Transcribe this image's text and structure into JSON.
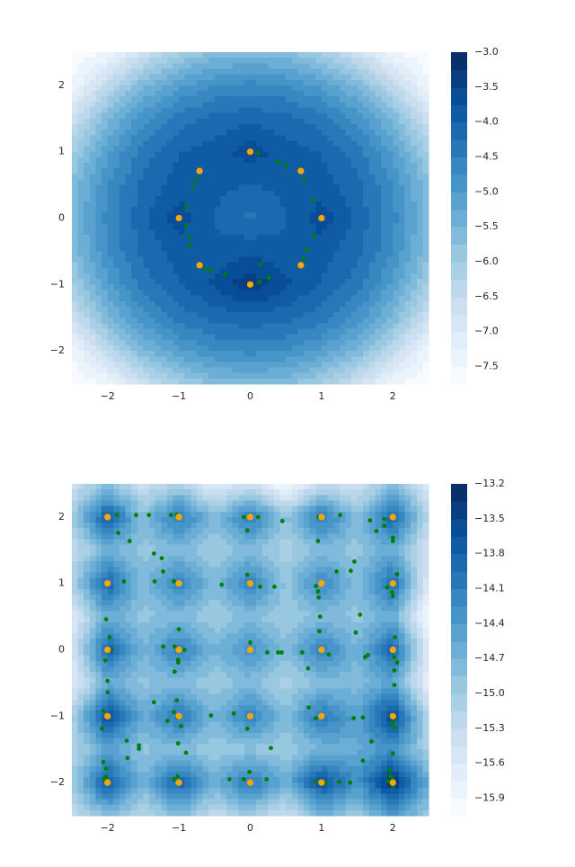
{
  "chart_data": [
    {
      "type": "contour",
      "x": [
        -2.5,
        -2,
        -1.5,
        -1,
        -0.5,
        0,
        0.5,
        1,
        1.5,
        2,
        2.5
      ],
      "y": [
        2.5,
        2,
        1.5,
        1,
        0.5,
        0,
        -0.5,
        -1,
        -1.5,
        -2,
        -2.5
      ],
      "z": [
        [
          -7.7,
          -7.53,
          -6.66,
          -6.04,
          -5.7,
          -5.6,
          -5.7,
          -6.04,
          -6.66,
          -7.53,
          -7.7
        ],
        [
          -7.53,
          -6.4,
          -5.59,
          -5.05,
          -4.74,
          -4.65,
          -4.74,
          -5.05,
          -5.59,
          -6.4,
          -7.53
        ],
        [
          -6.66,
          -5.59,
          -4.84,
          -4.38,
          -4.15,
          -4.09,
          -4.15,
          -4.38,
          -4.84,
          -5.59,
          -6.66
        ],
        [
          -6.04,
          -5.05,
          -4.38,
          -4.0,
          -3.9,
          -3.6,
          -3.9,
          -4.0,
          -4.38,
          -5.05,
          -6.04
        ],
        [
          -5.7,
          -4.74,
          -4.15,
          -3.9,
          -3.95,
          -4.0,
          -3.95,
          -3.9,
          -4.15,
          -4.74,
          -5.7
        ],
        [
          -5.6,
          -4.65,
          -4.09,
          -3.6,
          -4.0,
          -4.3,
          -4.0,
          -3.6,
          -4.09,
          -4.65,
          -5.6
        ],
        [
          -5.7,
          -4.74,
          -4.15,
          -3.9,
          -3.95,
          -3.8,
          -3.95,
          -3.9,
          -4.15,
          -4.74,
          -5.7
        ],
        [
          -6.04,
          -5.05,
          -4.38,
          -4.0,
          -3.7,
          -3.3,
          -3.7,
          -4.0,
          -4.38,
          -5.05,
          -6.04
        ],
        [
          -6.66,
          -5.59,
          -4.84,
          -4.38,
          -4.15,
          -4.09,
          -4.15,
          -4.38,
          -4.84,
          -5.59,
          -6.66
        ],
        [
          -7.53,
          -6.4,
          -5.59,
          -5.05,
          -4.74,
          -4.65,
          -4.74,
          -5.05,
          -5.59,
          -6.4,
          -7.53
        ],
        [
          -7.7,
          -7.53,
          -6.66,
          -6.04,
          -5.7,
          -5.6,
          -5.7,
          -6.04,
          -6.66,
          -7.53,
          -7.7
        ]
      ],
      "levels": [
        -7.75,
        -7.5,
        -7.25,
        -7.0,
        -6.75,
        -6.5,
        -6.25,
        -6.0,
        -5.75,
        -5.5,
        -5.25,
        -5.0,
        -4.75,
        -4.5,
        -4.25,
        -4.0,
        -3.75,
        -3.5,
        -3.25,
        -3.0
      ],
      "colormap": [
        "#f7fbff",
        "#deebf7",
        "#c6dbef",
        "#9ecae1",
        "#6baed6",
        "#4292c6",
        "#2171b5",
        "#08519c",
        "#08306b"
      ],
      "cticks": [
        {
          "value": -3.0,
          "label": "−3.0"
        },
        {
          "value": -3.5,
          "label": "−3.5"
        },
        {
          "value": -4.0,
          "label": "−4.0"
        },
        {
          "value": -4.5,
          "label": "−4.5"
        },
        {
          "value": -5.0,
          "label": "−5.0"
        },
        {
          "value": -5.5,
          "label": "−5.5"
        },
        {
          "value": -6.0,
          "label": "−6.0"
        },
        {
          "value": -6.5,
          "label": "−6.5"
        },
        {
          "value": -7.0,
          "label": "−7.0"
        },
        {
          "value": -7.5,
          "label": "−7.5"
        }
      ],
      "xlim": [
        -2.5,
        2.5
      ],
      "ylim": [
        -2.5,
        2.5
      ],
      "xticks": [
        {
          "value": -2,
          "label": "−2"
        },
        {
          "value": -1,
          "label": "−1"
        },
        0,
        1,
        2
      ],
      "yticks": [
        {
          "value": -2,
          "label": "−2"
        },
        {
          "value": -1,
          "label": "−1"
        },
        0,
        1,
        2
      ],
      "series": [
        {
          "color": "green",
          "x": [
            0.11,
            0.39,
            0.49,
            0.76,
            0.88,
            0.89,
            0.79,
            0.75,
            0.15,
            0.26,
            0.13,
            -0.35,
            -0.55,
            -0.64,
            -0.84,
            -0.86,
            -0.9,
            -0.9,
            -0.8,
            -0.75
          ],
          "y": [
            0.98,
            0.85,
            0.8,
            0.57,
            0.27,
            -0.27,
            -0.47,
            -0.61,
            -0.7,
            -0.9,
            -0.96,
            -0.85,
            -0.79,
            -0.76,
            -0.41,
            -0.28,
            -0.11,
            0.16,
            0.47,
            0.58
          ]
        },
        {
          "color": "orange",
          "x": [
            0,
            0.71,
            1,
            0.71,
            0,
            -1,
            -0.71,
            -0.71
          ],
          "y": [
            1,
            0.71,
            0,
            -0.71,
            -1,
            0,
            0.71,
            -0.71
          ]
        }
      ]
    },
    {
      "type": "contour",
      "x": [
        -2.5,
        -2,
        -1.5,
        -1,
        -0.5,
        0,
        0.5,
        1,
        1.5,
        2,
        2.5
      ],
      "y": [
        2.5,
        2,
        1.5,
        1,
        0.5,
        0,
        -0.5,
        -1,
        -1.5,
        -2,
        -2.5
      ],
      "z": [
        [
          -15.4,
          -14.9,
          -15.4,
          -15.1,
          -15.7,
          -15.4,
          -16.0,
          -15.3,
          -15.5,
          -14.8,
          -15.6
        ],
        [
          -15.0,
          -13.7,
          -14.8,
          -14.0,
          -14.8,
          -14.0,
          -14.9,
          -14.0,
          -14.8,
          -13.8,
          -15.2
        ],
        [
          -15.3,
          -14.7,
          -14.9,
          -14.8,
          -15.0,
          -14.8,
          -15.1,
          -14.8,
          -14.9,
          -14.6,
          -15.5
        ],
        [
          -15.1,
          -13.8,
          -14.8,
          -14.1,
          -14.8,
          -14.1,
          -14.9,
          -14.2,
          -14.8,
          -13.9,
          -15.6
        ],
        [
          -15.6,
          -14.6,
          -14.9,
          -14.8,
          -15.0,
          -14.8,
          -15.0,
          -14.8,
          -14.9,
          -14.6,
          -16.0
        ],
        [
          -15.5,
          -13.8,
          -14.7,
          -14.1,
          -14.7,
          -14.3,
          -14.8,
          -14.1,
          -14.7,
          -13.8,
          -15.6
        ],
        [
          -15.7,
          -14.6,
          -14.9,
          -14.8,
          -15.0,
          -14.8,
          -15.1,
          -14.8,
          -14.8,
          -14.5,
          -15.8
        ],
        [
          -15.1,
          -13.6,
          -14.6,
          -14.0,
          -14.7,
          -14.1,
          -14.8,
          -14.0,
          -14.5,
          -13.5,
          -15.2
        ],
        [
          -15.2,
          -14.5,
          -14.9,
          -14.8,
          -15.0,
          -14.9,
          -15.0,
          -14.7,
          -14.6,
          -14.3,
          -15.1
        ],
        [
          -15.0,
          -13.7,
          -14.7,
          -13.8,
          -14.6,
          -14.0,
          -14.6,
          -13.6,
          -14.3,
          -13.3,
          -14.6
        ],
        [
          -15.3,
          -14.8,
          -15.2,
          -14.8,
          -15.3,
          -15.0,
          -15.4,
          -14.7,
          -15.0,
          -14.4,
          -15.0
        ]
      ],
      "levels": [
        -16.05,
        -15.9,
        -15.75,
        -15.6,
        -15.45,
        -15.3,
        -15.15,
        -15.0,
        -14.85,
        -14.7,
        -14.55,
        -14.4,
        -14.25,
        -14.1,
        -13.95,
        -13.8,
        -13.65,
        -13.5,
        -13.35,
        -13.2
      ],
      "colormap": [
        "#f7fbff",
        "#deebf7",
        "#c6dbef",
        "#9ecae1",
        "#6baed6",
        "#4292c6",
        "#2171b5",
        "#08519c",
        "#08306b"
      ],
      "cticks": [
        {
          "value": -13.2,
          "label": "−13.2"
        },
        {
          "value": -13.5,
          "label": "−13.5"
        },
        {
          "value": -13.8,
          "label": "−13.8"
        },
        {
          "value": -14.1,
          "label": "−14.1"
        },
        {
          "value": -14.4,
          "label": "−14.4"
        },
        {
          "value": -14.7,
          "label": "−14.7"
        },
        {
          "value": -15.0,
          "label": "−15.0"
        },
        {
          "value": -15.3,
          "label": "−15.3"
        },
        {
          "value": -15.6,
          "label": "−15.6"
        },
        {
          "value": -15.9,
          "label": "−15.9"
        }
      ],
      "xlim": [
        -2.5,
        2.5
      ],
      "ylim": [
        -2.5,
        2.5
      ],
      "xticks": [
        {
          "value": -2,
          "label": "−2"
        },
        {
          "value": -1,
          "label": "−1"
        },
        0,
        1,
        2
      ],
      "yticks": [
        {
          "value": -2,
          "label": "−2"
        },
        {
          "value": -1,
          "label": "−1"
        },
        0,
        1,
        2
      ],
      "series": [
        {
          "color": "green",
          "x": [
            -1.87,
            -1.6,
            -1.42,
            -1.11,
            -1.03,
            -0.09,
            -0.04,
            0.11,
            0.45,
            0.96,
            1.26,
            1.68,
            1.88,
            1.88,
            2.0,
            2.0,
            1.77,
            -1.85,
            -1.69,
            0.95,
            -1.35,
            -1.24,
            -1.22,
            -1.34,
            -1.77,
            -1.07,
            -0.4,
            -0.04,
            0.14,
            0.34,
            1.21,
            1.41,
            1.46,
            0.92,
            0.95,
            0.96,
            1.92,
            1.99,
            2.06,
            2.0,
            0.98,
            1.54,
            -2.02,
            -1.0,
            -1.22,
            -1.06,
            -0.92,
            -1.01,
            -1.01,
            -1.06,
            0.0,
            0.24,
            0.39,
            0.44,
            0.73,
            0.97,
            1.1,
            0.81,
            1.48,
            1.61,
            1.65,
            2.03,
            2.02,
            2.06,
            2.02,
            2.02,
            -1.94,
            -2.03,
            -1.97,
            -2.0,
            -2.0,
            -1.35,
            -1.03,
            -0.55,
            -0.23,
            -1.07,
            -1.02,
            -0.97,
            -1.16,
            -2.08,
            -2.06,
            -0.04,
            0.82,
            0.92,
            1.58,
            1.45,
            2.02,
            2.02,
            1.99,
            -1.73,
            -1.56,
            -1.56,
            -1.01,
            -0.9,
            0.29,
            1.7,
            2.0,
            1.58,
            -1.72,
            -2.06,
            -2.02,
            -2.02,
            -2.04,
            -1.07,
            -1.02,
            -0.01,
            -0.29,
            -0.09,
            0.23,
            0.91,
            1.06,
            1.25,
            1.4,
            1.95,
            1.97,
            2.0,
            1.93,
            2.0
          ],
          "y": [
            2.03,
            2.03,
            2.03,
            2.03,
            2.03,
            2.0,
            1.8,
            2.0,
            1.94,
            2.0,
            2.03,
            1.95,
            1.97,
            1.87,
            1.69,
            1.64,
            1.79,
            1.76,
            1.64,
            1.64,
            1.45,
            1.38,
            1.18,
            1.03,
            1.03,
            1.03,
            0.98,
            1.13,
            0.95,
            0.95,
            1.18,
            1.19,
            1.33,
            0.96,
            0.88,
            0.79,
            0.94,
            0.87,
            1.14,
            0.81,
            0.5,
            0.53,
            0.46,
            0.31,
            0.05,
            0.05,
            0.0,
            -0.15,
            -0.19,
            -0.33,
            0.11,
            -0.04,
            -0.04,
            -0.04,
            -0.04,
            0.28,
            -0.07,
            -0.28,
            0.26,
            -0.11,
            -0.08,
            0.19,
            -0.11,
            -0.19,
            -0.31,
            -0.53,
            0.0,
            -0.16,
            0.19,
            -0.47,
            -0.64,
            -0.79,
            -0.76,
            -0.99,
            -0.96,
            -0.94,
            -1.02,
            -1.15,
            -1.07,
            -1.19,
            -0.92,
            -1.19,
            -0.87,
            -1.03,
            -1.02,
            -1.03,
            -1.04,
            -1.17,
            -1.1,
            -1.37,
            -1.44,
            -1.49,
            -1.41,
            -1.55,
            -1.48,
            -1.38,
            -1.56,
            -1.67,
            -1.63,
            -1.69,
            -1.79,
            -1.91,
            -1.95,
            -1.95,
            -1.91,
            -1.84,
            -1.95,
            -1.95,
            -1.95,
            -1.98,
            -2.0,
            -1.99,
            -2.0,
            -1.82,
            -1.9,
            -1.95,
            -1.98,
            -2.05
          ]
        },
        {
          "color": "orange",
          "x": [
            -2,
            -1,
            0,
            1,
            2,
            -2,
            -1,
            0,
            1,
            2,
            -2,
            -1,
            0,
            1,
            2,
            -2,
            -1,
            0,
            1,
            2,
            -2,
            -1,
            0,
            1,
            2
          ],
          "y": [
            2,
            2,
            2,
            2,
            2,
            1,
            1,
            1,
            1,
            1,
            0,
            0,
            0,
            0,
            0,
            -1,
            -1,
            -1,
            -1,
            -1,
            -2,
            -2,
            -2,
            -2,
            -2
          ]
        }
      ]
    }
  ]
}
